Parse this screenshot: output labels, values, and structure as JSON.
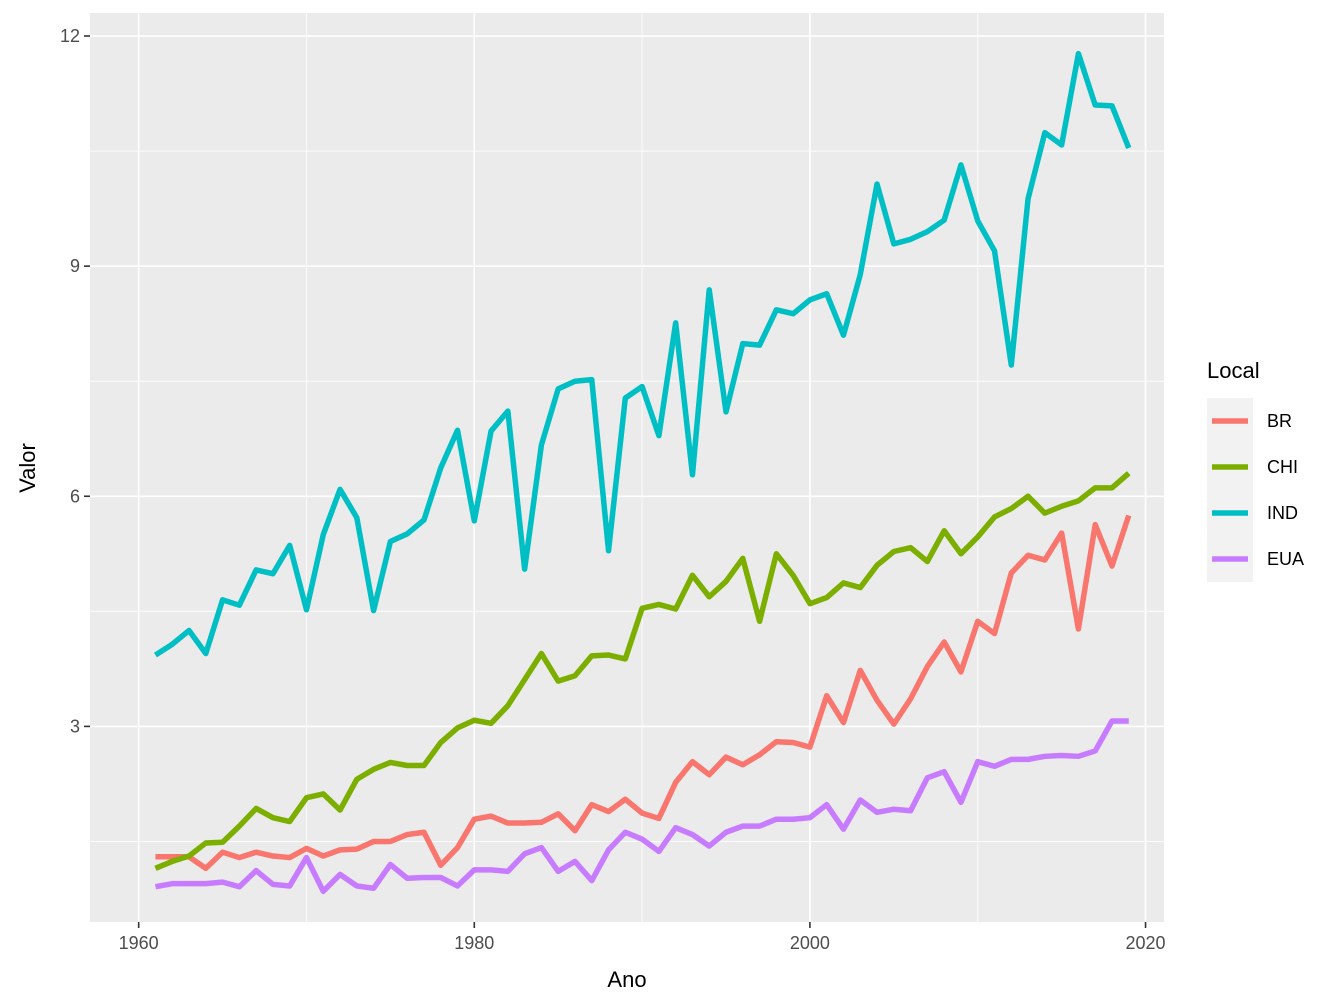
{
  "chart_data": {
    "type": "line",
    "xlabel": "Ano",
    "ylabel": "Valor",
    "xlim": [
      1957.1,
      2021.1
    ],
    "ylim": [
      0.45,
      12.3
    ],
    "x_ticks": [
      1960,
      1980,
      2000,
      2020
    ],
    "x_tick_labels": [
      "1960",
      "1980",
      "2000",
      "2020"
    ],
    "y_ticks": [
      3,
      6,
      9,
      12
    ],
    "y_tick_labels": [
      "3",
      "6",
      "9",
      "12"
    ],
    "grid": true,
    "legend": {
      "title": "Local",
      "position": "right"
    },
    "x": [
      1961,
      1962,
      1963,
      1964,
      1965,
      1966,
      1967,
      1968,
      1969,
      1970,
      1971,
      1972,
      1973,
      1974,
      1975,
      1976,
      1977,
      1978,
      1979,
      1980,
      1981,
      1982,
      1983,
      1984,
      1985,
      1986,
      1987,
      1988,
      1989,
      1990,
      1991,
      1992,
      1993,
      1994,
      1995,
      1996,
      1997,
      1998,
      1999,
      2000,
      2001,
      2002,
      2003,
      2004,
      2005,
      2006,
      2007,
      2008,
      2009,
      2010,
      2011,
      2012,
      2013,
      2014,
      2015,
      2016,
      2017,
      2018,
      2019
    ],
    "series": [
      {
        "name": "BR",
        "color": "#F8766D",
        "values": [
          1.3,
          1.3,
          1.3,
          1.15,
          1.36,
          1.29,
          1.36,
          1.31,
          1.29,
          1.41,
          1.31,
          1.39,
          1.4,
          1.5,
          1.5,
          1.59,
          1.62,
          1.19,
          1.42,
          1.79,
          1.83,
          1.74,
          1.74,
          1.75,
          1.86,
          1.64,
          1.98,
          1.89,
          2.05,
          1.87,
          1.8,
          2.27,
          2.54,
          2.37,
          2.6,
          2.5,
          2.63,
          2.8,
          2.79,
          2.73,
          3.4,
          3.05,
          3.73,
          3.34,
          3.03,
          3.36,
          3.78,
          4.1,
          3.71,
          4.37,
          4.21,
          5.0,
          5.23,
          5.17,
          5.52,
          4.27,
          5.63,
          5.09,
          5.75
        ]
      },
      {
        "name": "CHI",
        "color": "#7CAE00",
        "values": [
          1.15,
          1.24,
          1.31,
          1.48,
          1.49,
          1.7,
          1.93,
          1.81,
          1.76,
          2.07,
          2.12,
          1.91,
          2.31,
          2.44,
          2.53,
          2.49,
          2.49,
          2.79,
          2.98,
          3.08,
          3.04,
          3.27,
          3.61,
          3.95,
          3.59,
          3.66,
          3.92,
          3.93,
          3.88,
          4.54,
          4.59,
          4.53,
          4.97,
          4.69,
          4.89,
          5.19,
          4.37,
          5.25,
          4.97,
          4.6,
          4.68,
          4.87,
          4.81,
          5.1,
          5.28,
          5.33,
          5.15,
          5.55,
          5.25,
          5.47,
          5.73,
          5.84,
          6.0,
          5.78,
          5.87,
          5.94,
          6.11,
          6.11,
          6.3
        ]
      },
      {
        "name": "IND",
        "color": "#00BFC4",
        "values": [
          3.93,
          4.07,
          4.25,
          3.95,
          4.65,
          4.58,
          5.04,
          4.99,
          5.36,
          4.52,
          5.5,
          6.09,
          5.72,
          4.51,
          5.41,
          5.51,
          5.69,
          6.37,
          6.86,
          5.68,
          6.85,
          7.11,
          5.05,
          6.67,
          7.4,
          7.5,
          7.52,
          5.29,
          7.28,
          7.43,
          6.79,
          8.26,
          6.28,
          8.69,
          7.1,
          7.99,
          7.97,
          8.43,
          8.38,
          8.56,
          8.64,
          8.1,
          8.89,
          10.07,
          9.29,
          9.35,
          9.45,
          9.6,
          10.32,
          9.59,
          9.2,
          7.71,
          9.88,
          10.74,
          10.58,
          11.77,
          11.1,
          11.09,
          10.54
        ]
      },
      {
        "name": "EUA",
        "color": "#C77CFF",
        "values": [
          0.91,
          0.95,
          0.95,
          0.95,
          0.97,
          0.91,
          1.12,
          0.94,
          0.92,
          1.29,
          0.85,
          1.07,
          0.92,
          0.89,
          1.2,
          1.02,
          1.03,
          1.03,
          0.92,
          1.13,
          1.13,
          1.11,
          1.34,
          1.42,
          1.11,
          1.24,
          0.99,
          1.39,
          1.62,
          1.53,
          1.37,
          1.68,
          1.59,
          1.44,
          1.62,
          1.7,
          1.7,
          1.79,
          1.79,
          1.81,
          1.98,
          1.66,
          2.04,
          1.88,
          1.92,
          1.9,
          2.33,
          2.41,
          2.01,
          2.54,
          2.48,
          2.57,
          2.57,
          2.61,
          2.62,
          2.61,
          2.68,
          3.07,
          3.07
        ]
      }
    ]
  }
}
